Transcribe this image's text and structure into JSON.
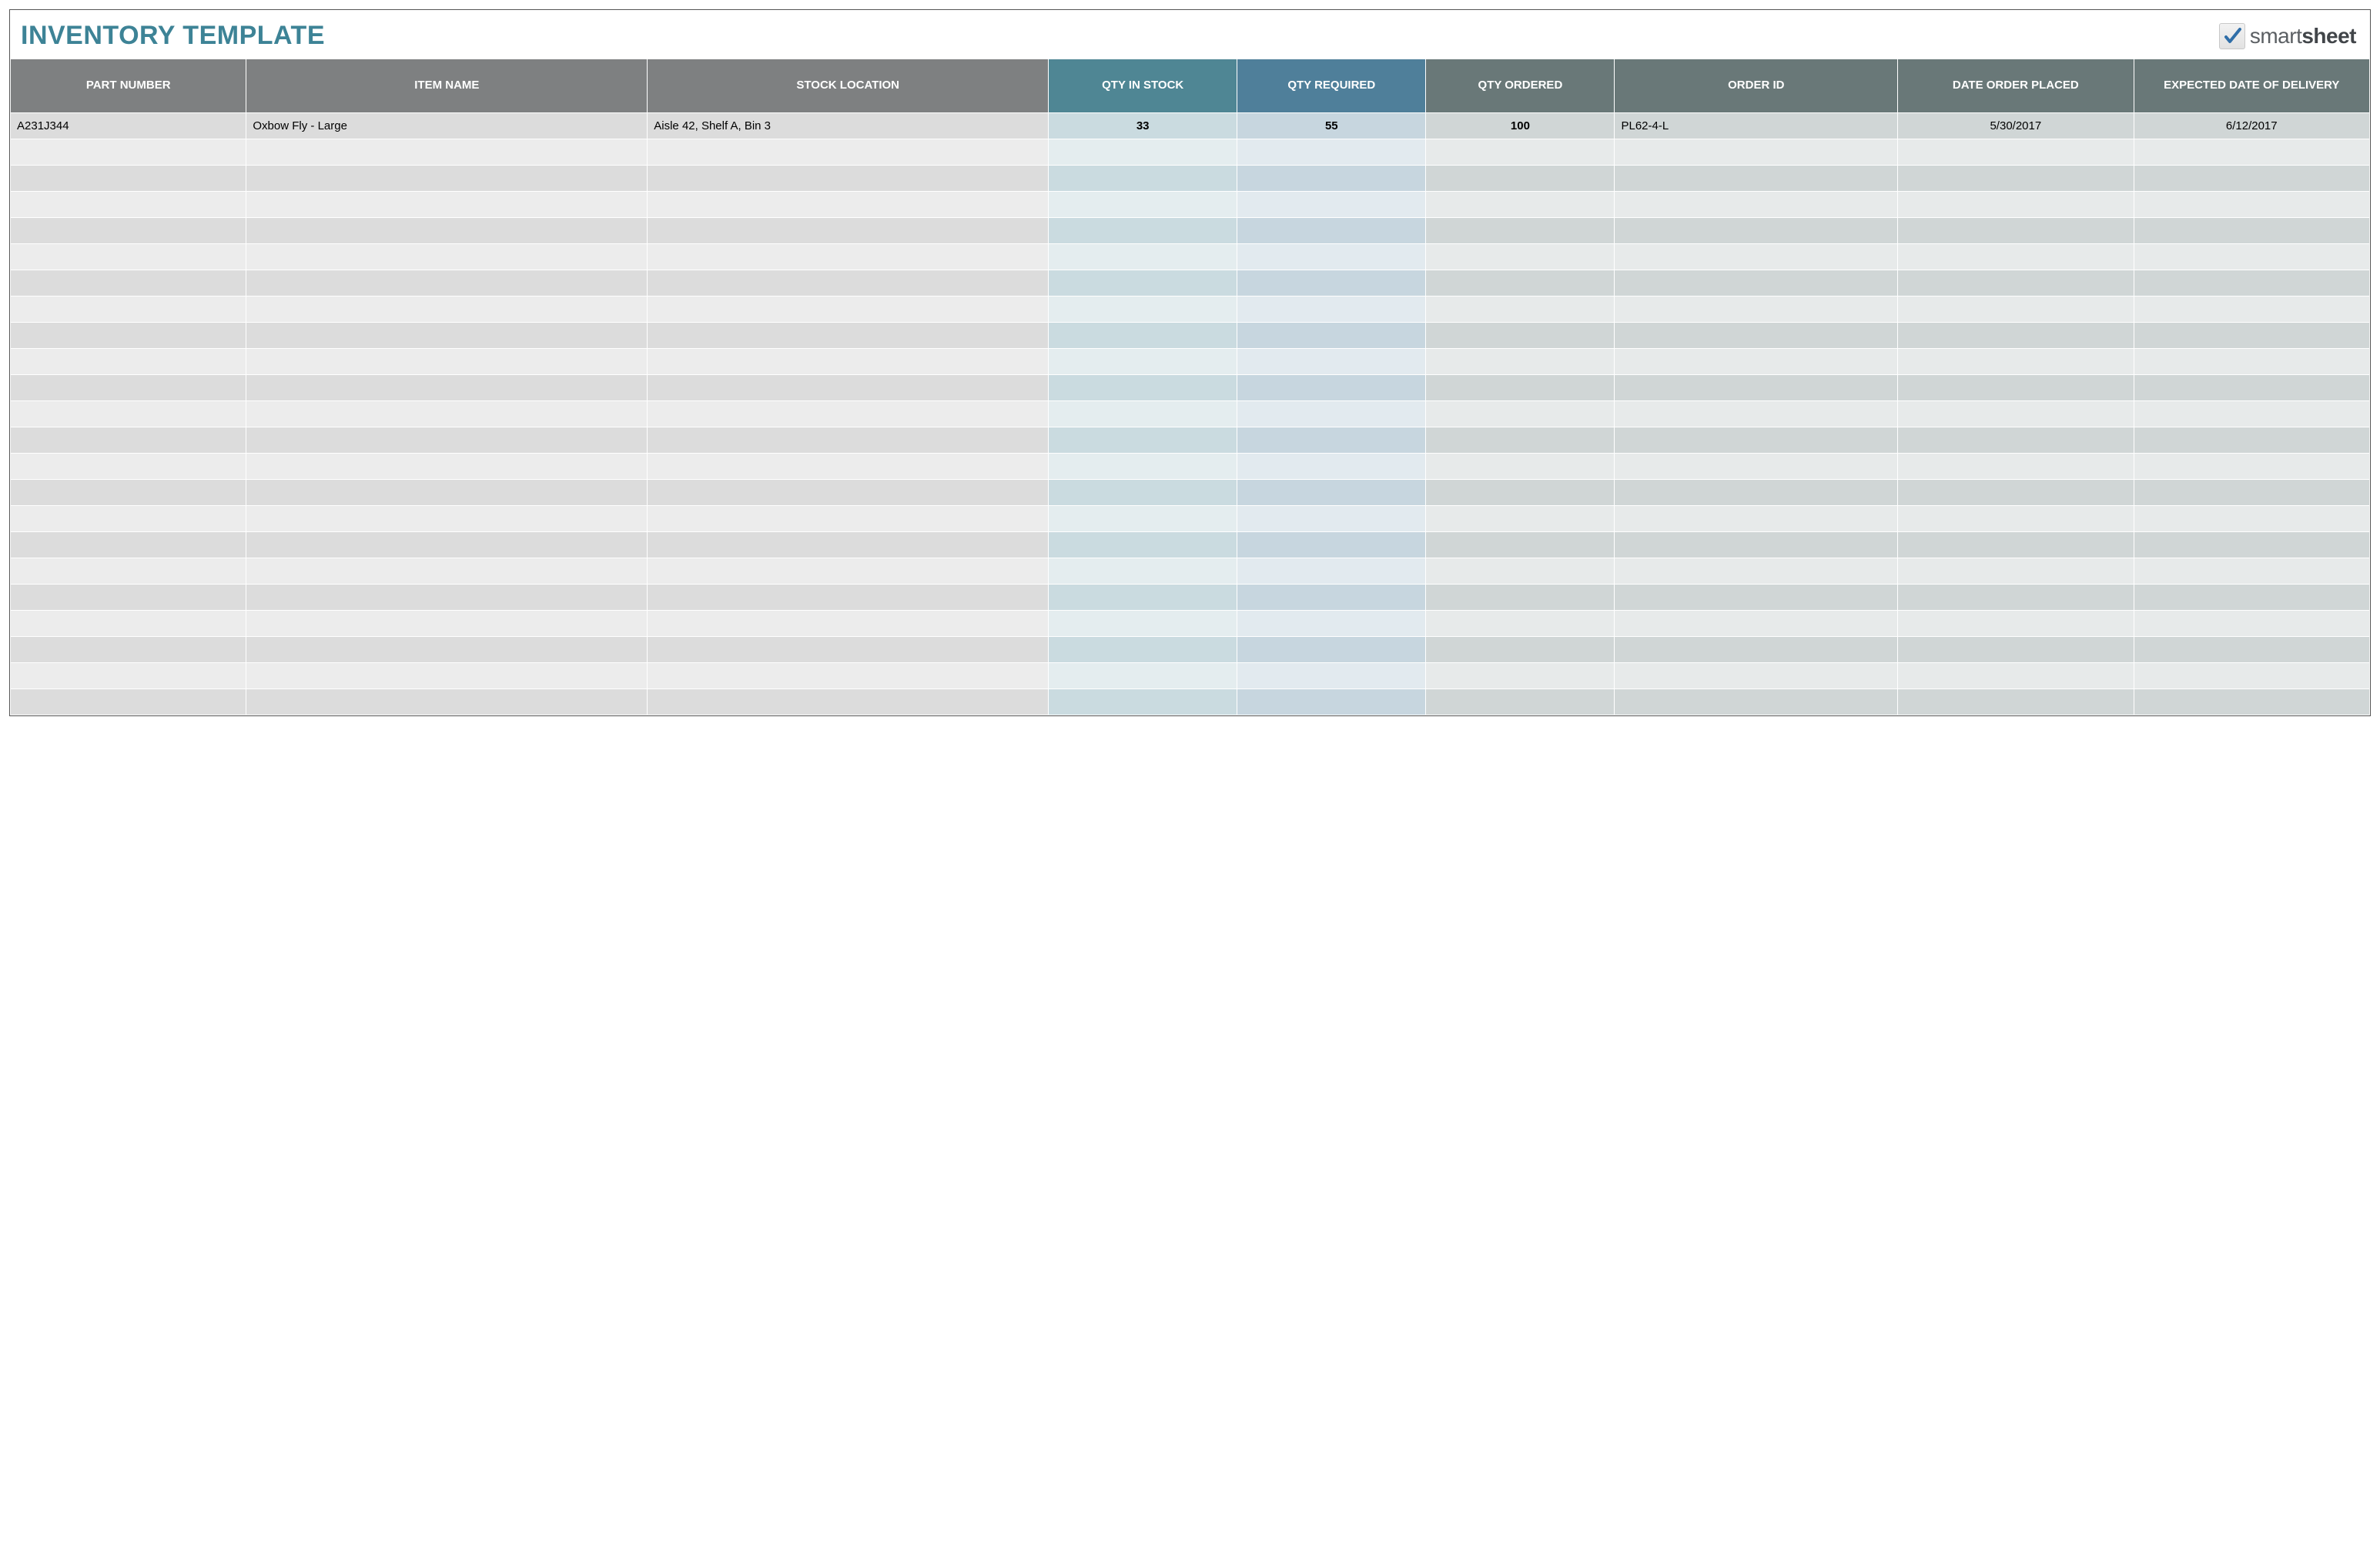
{
  "title": {
    "text": "INVENTORY TEMPLATE",
    "color": "#3d8396"
  },
  "logo": {
    "brand_prefix": "smart",
    "brand_suffix": "sheet",
    "check_color": "#2f6ea8"
  },
  "table": {
    "empty_row_count": 22,
    "columns": [
      {
        "key": "part_number",
        "label": "PART NUMBER",
        "width_pct": 10,
        "align": "left",
        "header_bg": "#7e8081",
        "odd_bg": "#dcdcdc",
        "even_bg": "#ececec"
      },
      {
        "key": "item_name",
        "label": "ITEM NAME",
        "width_pct": 17,
        "align": "left",
        "header_bg": "#7e8081",
        "odd_bg": "#dcdcdc",
        "even_bg": "#ececec"
      },
      {
        "key": "stock_location",
        "label": "STOCK LOCATION",
        "width_pct": 17,
        "align": "left",
        "header_bg": "#7e8081",
        "odd_bg": "#dcdcdc",
        "even_bg": "#ececec"
      },
      {
        "key": "qty_in_stock",
        "label": "QTY IN STOCK",
        "width_pct": 8,
        "align": "center",
        "header_bg": "#4f8694",
        "odd_bg": "#cadbe0",
        "even_bg": "#e4edef",
        "bold_data": true
      },
      {
        "key": "qty_required",
        "label": "QTY REQUIRED",
        "width_pct": 8,
        "align": "center",
        "header_bg": "#4f7f9a",
        "odd_bg": "#c7d6df",
        "even_bg": "#e2eaef",
        "bold_data": true
      },
      {
        "key": "qty_ordered",
        "label": "QTY ORDERED",
        "width_pct": 8,
        "align": "center",
        "header_bg": "#697878",
        "odd_bg": "#d0d6d6",
        "even_bg": "#e7eaea",
        "bold_data": true
      },
      {
        "key": "order_id",
        "label": "ORDER ID",
        "width_pct": 12,
        "align": "left",
        "header_bg": "#697878",
        "odd_bg": "#d0d6d6",
        "even_bg": "#e7eaea"
      },
      {
        "key": "date_placed",
        "label": "DATE ORDER PLACED",
        "width_pct": 10,
        "align": "center",
        "header_bg": "#697878",
        "odd_bg": "#d0d6d6",
        "even_bg": "#e7eaea"
      },
      {
        "key": "date_delivery",
        "label": "EXPECTED DATE OF DELIVERY",
        "width_pct": 10,
        "align": "center",
        "header_bg": "#697878",
        "odd_bg": "#d0d6d6",
        "even_bg": "#e7eaea"
      }
    ],
    "rows": [
      {
        "part_number": "A231J344",
        "item_name": "Oxbow Fly - Large",
        "stock_location": "Aisle 42, Shelf A, Bin 3",
        "qty_in_stock": "33",
        "qty_required": "55",
        "qty_ordered": "100",
        "order_id": "PL62-4-L",
        "date_placed": "5/30/2017",
        "date_delivery": "6/12/2017"
      }
    ]
  }
}
